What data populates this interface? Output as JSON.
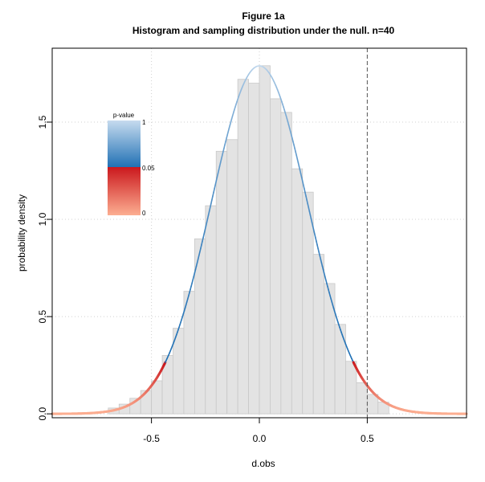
{
  "chart_data": {
    "type": "histogram",
    "title": "Figure 1a",
    "subtitle": "Histogram and sampling distribution under the null. n=40",
    "xlabel": "d.obs",
    "ylabel": "probability density",
    "xlim": [
      -0.96,
      0.96
    ],
    "ylim": [
      -0.02,
      1.88
    ],
    "x_ticks": [
      -0.5,
      0.0,
      0.5
    ],
    "x_tick_labels": [
      "-0.5",
      "0.0",
      "0.5"
    ],
    "y_ticks": [
      0.0,
      0.5,
      1.0,
      1.5
    ],
    "y_tick_labels": [
      "0.0",
      "0.5",
      "1.0",
      "1.5"
    ],
    "grid": true,
    "bin_width": 0.05,
    "bins": [
      {
        "x0": -0.7,
        "x1": -0.65,
        "density": 0.03
      },
      {
        "x0": -0.65,
        "x1": -0.6,
        "density": 0.05
      },
      {
        "x0": -0.6,
        "x1": -0.55,
        "density": 0.08
      },
      {
        "x0": -0.55,
        "x1": -0.5,
        "density": 0.12
      },
      {
        "x0": -0.5,
        "x1": -0.45,
        "density": 0.17
      },
      {
        "x0": -0.45,
        "x1": -0.4,
        "density": 0.3
      },
      {
        "x0": -0.4,
        "x1": -0.35,
        "density": 0.44
      },
      {
        "x0": -0.35,
        "x1": -0.3,
        "density": 0.63
      },
      {
        "x0": -0.3,
        "x1": -0.25,
        "density": 0.9
      },
      {
        "x0": -0.25,
        "x1": -0.2,
        "density": 1.07
      },
      {
        "x0": -0.2,
        "x1": -0.15,
        "density": 1.35
      },
      {
        "x0": -0.15,
        "x1": -0.1,
        "density": 1.41
      },
      {
        "x0": -0.1,
        "x1": -0.05,
        "density": 1.72
      },
      {
        "x0": -0.05,
        "x1": 0.0,
        "density": 1.7
      },
      {
        "x0": 0.0,
        "x1": 0.05,
        "density": 1.79
      },
      {
        "x0": 0.05,
        "x1": 0.1,
        "density": 1.62
      },
      {
        "x0": 0.1,
        "x1": 0.15,
        "density": 1.55
      },
      {
        "x0": 0.15,
        "x1": 0.2,
        "density": 1.26
      },
      {
        "x0": 0.2,
        "x1": 0.25,
        "density": 1.14
      },
      {
        "x0": 0.25,
        "x1": 0.3,
        "density": 0.82
      },
      {
        "x0": 0.3,
        "x1": 0.35,
        "density": 0.67
      },
      {
        "x0": 0.35,
        "x1": 0.4,
        "density": 0.46
      },
      {
        "x0": 0.4,
        "x1": 0.45,
        "density": 0.27
      },
      {
        "x0": 0.45,
        "x1": 0.5,
        "density": 0.16
      },
      {
        "x0": 0.5,
        "x1": 0.55,
        "density": 0.1
      },
      {
        "x0": 0.55,
        "x1": 0.6,
        "density": 0.06
      }
    ],
    "curve": {
      "type": "normal",
      "mean": 0.0,
      "sd": 0.223,
      "critical_value": 0.437
    },
    "reference_line": {
      "x": 0.5,
      "style": "dashed"
    },
    "legend": {
      "title": "p-value",
      "position": "top-left",
      "labels": [
        "1",
        "0.05",
        "0"
      ],
      "colors": {
        "top": "#c6dbef",
        "mid_blue": "#2171b5",
        "mid_red": "#cb181d",
        "bottom": "#fcae91"
      }
    },
    "colors": {
      "bars_fill": "#e3e3e3",
      "bars_stroke": "#c8c8c8",
      "grid": "#d0d0d0"
    }
  }
}
